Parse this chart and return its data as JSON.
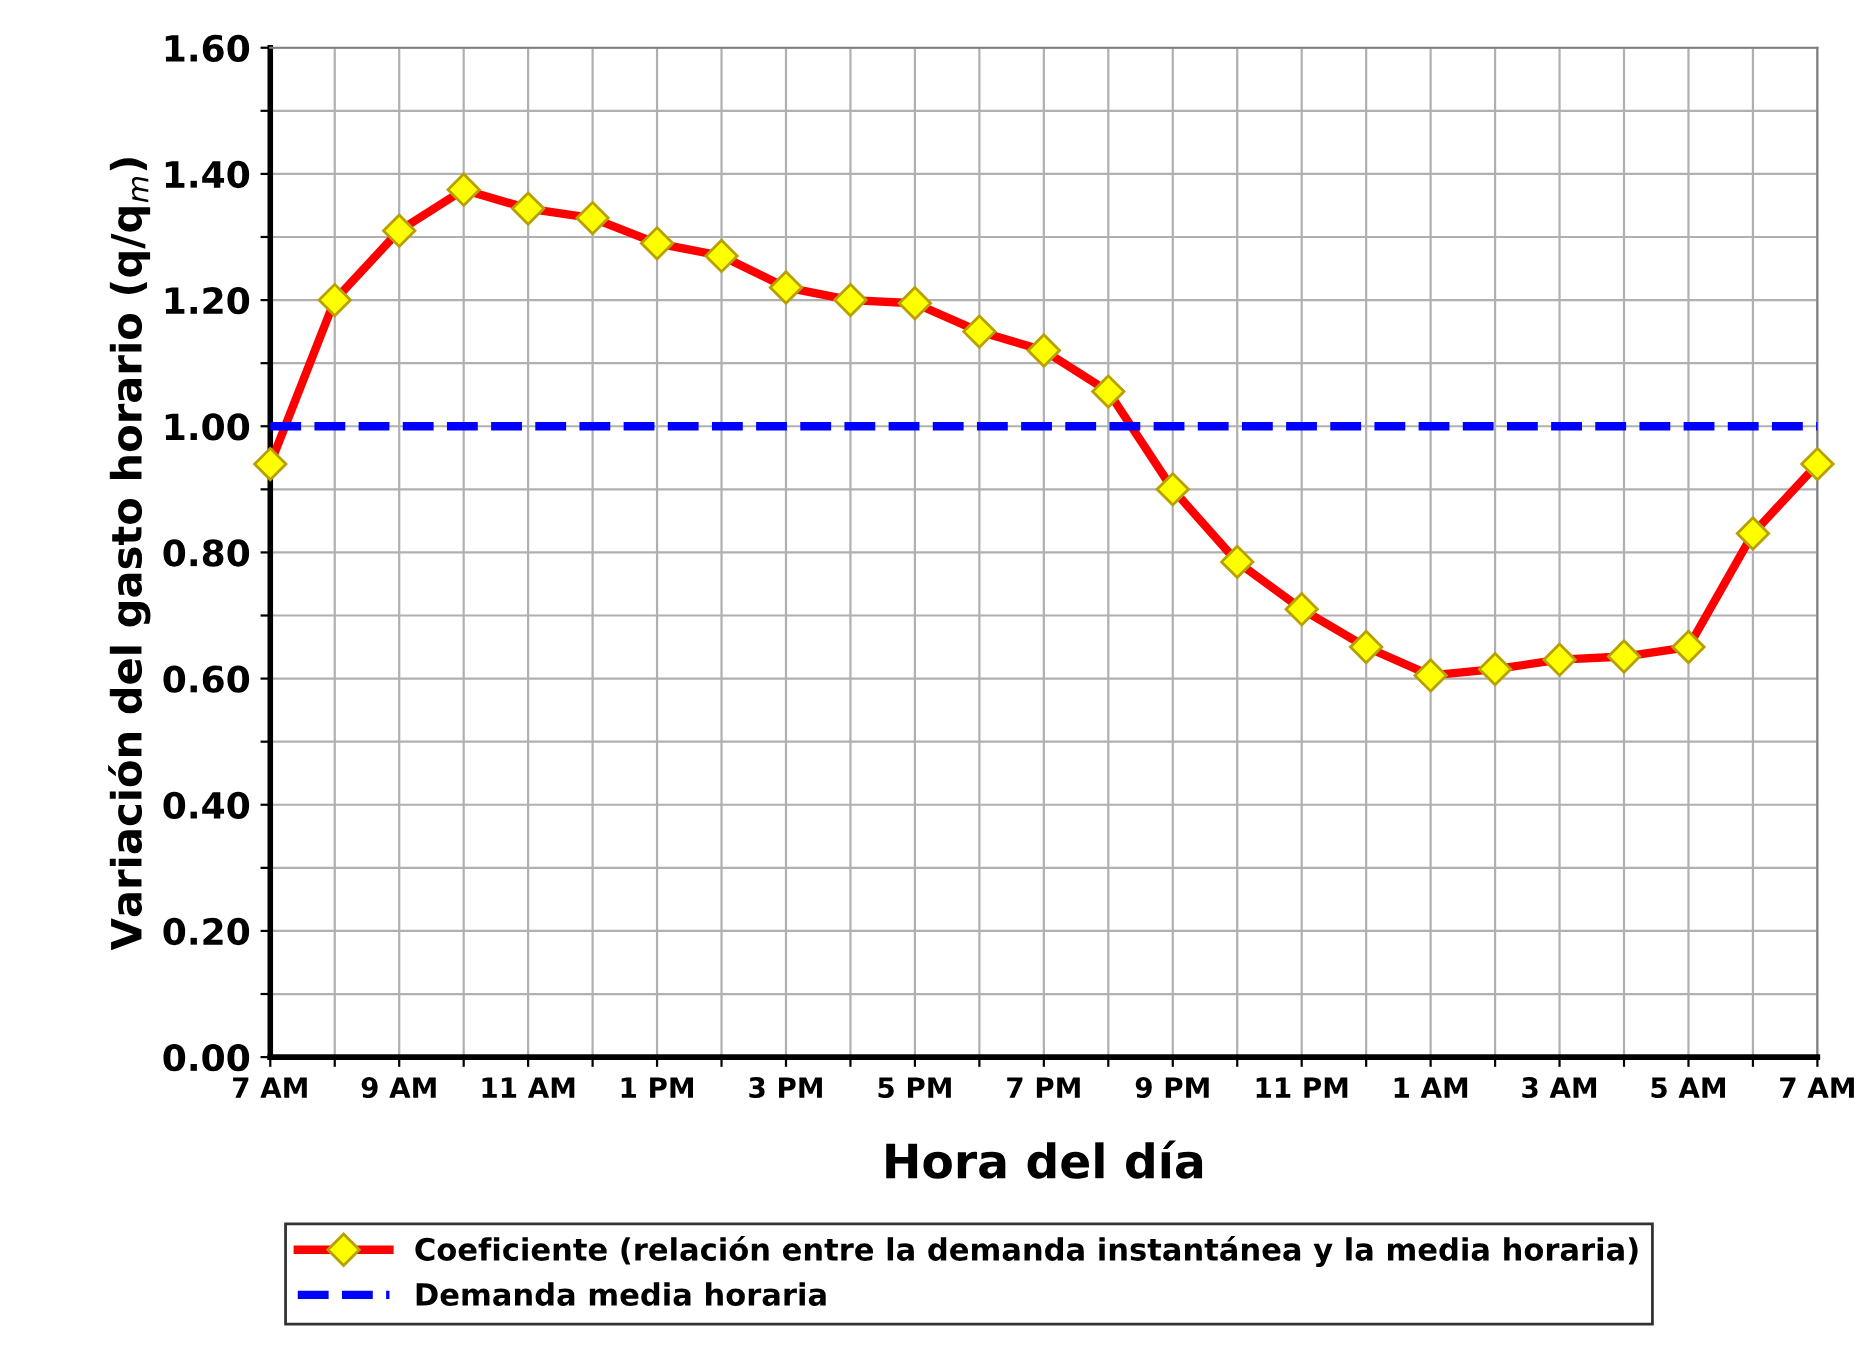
{
  "chart_data": {
    "type": "line",
    "xlabel": "Hora del día",
    "ylabel": "Variación del gasto horario (q/q$_{m}$)",
    "categories": [
      "7 AM",
      null,
      "9 AM",
      null,
      "11 AM",
      null,
      "1 PM",
      null,
      "3 PM",
      null,
      "5 PM",
      null,
      "7 PM",
      null,
      "9 PM",
      null,
      "11 PM",
      null,
      "1 AM",
      null,
      "3 AM",
      null,
      "5 AM",
      null,
      "7 AM"
    ],
    "series": [
      {
        "name": "Coeficiente (relación entre la demanda instantánea y la media horaria)",
        "color": "#ff0000",
        "marker": "diamond",
        "line_style": "solid",
        "values": [
          0.94,
          1.2,
          1.31,
          1.375,
          1.345,
          1.33,
          1.29,
          1.27,
          1.22,
          1.2,
          1.195,
          1.15,
          1.12,
          1.055,
          0.9,
          0.785,
          0.71,
          0.65,
          0.605,
          0.615,
          0.63,
          0.635,
          0.65,
          0.83,
          0.94
        ]
      },
      {
        "name": "Demanda media horaria",
        "color": "#0000ff",
        "marker": "none",
        "line_style": "dashed",
        "values": [
          1,
          1,
          1,
          1,
          1,
          1,
          1,
          1,
          1,
          1,
          1,
          1,
          1,
          1,
          1,
          1,
          1,
          1,
          1,
          1,
          1,
          1,
          1,
          1,
          1
        ]
      }
    ],
    "ylim": [
      0,
      1.6
    ],
    "yticks": [
      {
        "value": 0,
        "label": "0.00"
      },
      {
        "value": 0.1,
        "label": null
      },
      {
        "value": 0.2,
        "label": "0.20"
      },
      {
        "value": 0.3,
        "label": null
      },
      {
        "value": 0.4,
        "label": "0.40"
      },
      {
        "value": 0.5,
        "label": null
      },
      {
        "value": 0.6,
        "label": "0.60"
      },
      {
        "value": 0.7,
        "label": null
      },
      {
        "value": 0.8,
        "label": "0.80"
      },
      {
        "value": 0.9,
        "label": null
      },
      {
        "value": 1.0,
        "label": "1.00"
      },
      {
        "value": 1.1,
        "label": null
      },
      {
        "value": 1.2,
        "label": "1.20"
      },
      {
        "value": 1.3,
        "label": null
      },
      {
        "value": 1.4,
        "label": "1.40"
      },
      {
        "value": 1.5,
        "label": null
      },
      {
        "value": 1.6,
        "label": "1.60"
      }
    ],
    "grid": true,
    "legend": "bottom"
  }
}
